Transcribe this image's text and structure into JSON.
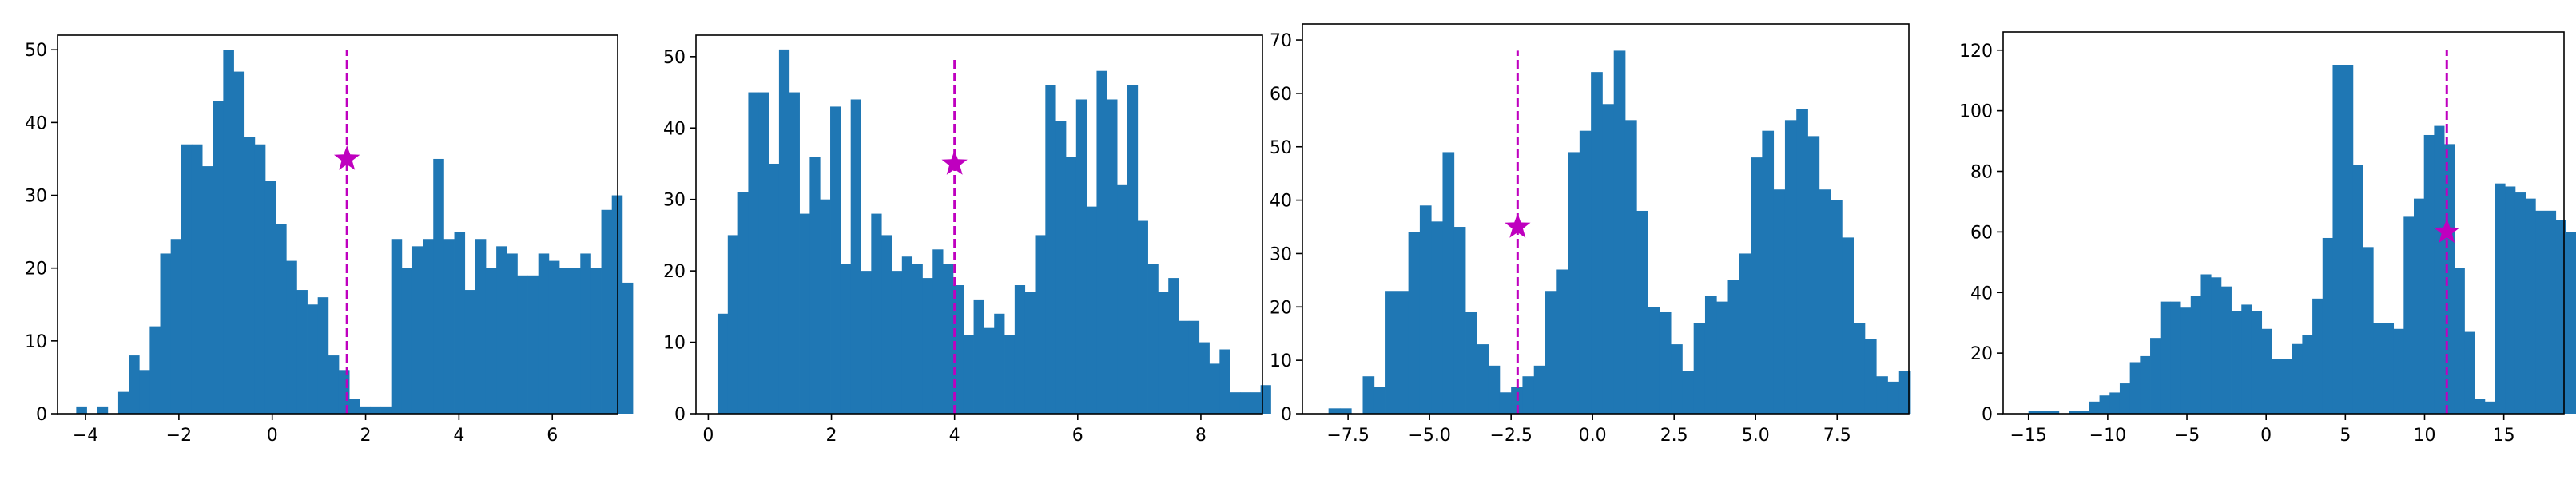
{
  "figure": {
    "marker_color": "#bf00bf",
    "bar_color": "#1f77b4"
  },
  "chart_data": [
    {
      "type": "bar",
      "title": "",
      "xlabel": "",
      "ylabel": "",
      "xlim": [
        -4.6,
        7.4
      ],
      "ylim": [
        0,
        52
      ],
      "xticks": [
        -4,
        -2,
        0,
        2,
        4,
        6
      ],
      "yticks": [
        0,
        10,
        20,
        30,
        40,
        50
      ],
      "bin_start": -4.2,
      "bin_width": 0.225,
      "values": [
        1,
        0,
        1,
        0,
        3,
        8,
        6,
        12,
        22,
        24,
        37,
        37,
        34,
        43,
        50,
        47,
        38,
        37,
        32,
        26,
        21,
        17,
        15,
        16,
        8,
        6,
        2,
        1,
        1,
        1,
        24,
        20,
        23,
        24,
        35,
        24,
        25,
        17,
        24,
        20,
        23,
        22,
        19,
        19,
        22,
        21,
        20,
        20,
        22,
        20,
        28,
        30,
        18
      ],
      "marker": {
        "x": 1.6,
        "y": 35,
        "line_top": 50
      },
      "grid": false,
      "legend": "none"
    },
    {
      "type": "bar",
      "title": "",
      "xlabel": "",
      "ylabel": "",
      "xlim": [
        -0.2,
        9.0
      ],
      "ylim": [
        0,
        53
      ],
      "xticks": [
        0,
        2,
        4,
        6,
        8
      ],
      "yticks": [
        0,
        10,
        20,
        30,
        40,
        50
      ],
      "bin_start": 0.15,
      "bin_width": 0.1664,
      "values": [
        14,
        25,
        31,
        45,
        45,
        35,
        51,
        45,
        28,
        36,
        30,
        43,
        21,
        44,
        20,
        28,
        25,
        20,
        22,
        21,
        19,
        23,
        21,
        18,
        11,
        16,
        12,
        14,
        11,
        18,
        17,
        25,
        46,
        41,
        36,
        44,
        29,
        48,
        44,
        32,
        46,
        27,
        21,
        17,
        19,
        13,
        13,
        10,
        7,
        9,
        3,
        3,
        3,
        4
      ],
      "marker": {
        "x": 4.0,
        "y": 35,
        "line_top": 50
      },
      "grid": false,
      "legend": "none"
    },
    {
      "type": "bar",
      "title": "",
      "xlabel": "",
      "ylabel": "",
      "xlim": [
        -8.9,
        9.7
      ],
      "ylim": [
        0,
        73
      ],
      "xticks": [
        -7.5,
        -5.0,
        -2.5,
        0.0,
        2.5,
        5.0,
        7.5
      ],
      "xtick_labels": [
        "−7.5",
        "−5.0",
        "−2.5",
        "0.0",
        "2.5",
        "5.0",
        "7.5"
      ],
      "yticks": [
        0,
        10,
        20,
        30,
        40,
        50,
        60,
        70
      ],
      "bin_start": -8.1,
      "bin_width": 0.35,
      "values": [
        1,
        1,
        0,
        7,
        5,
        23,
        23,
        34,
        39,
        36,
        49,
        35,
        19,
        13,
        9,
        4,
        5,
        7,
        9,
        23,
        27,
        49,
        53,
        64,
        58,
        68,
        55,
        38,
        20,
        19,
        13,
        8,
        17,
        22,
        21,
        25,
        30,
        48,
        53,
        42,
        55,
        57,
        52,
        42,
        40,
        33,
        17,
        14,
        7,
        6,
        8
      ],
      "marker": {
        "x": -2.3,
        "y": 35,
        "line_top": 68
      },
      "grid": false,
      "legend": "none"
    },
    {
      "type": "bar",
      "title": "",
      "xlabel": "",
      "ylabel": "",
      "xlim": [
        -16.6,
        18.8
      ],
      "ylim": [
        0,
        126
      ],
      "xticks": [
        -15,
        -10,
        -5,
        0,
        5,
        10,
        15
      ],
      "xtick_labels": [
        "−15",
        "−10",
        "−5",
        "0",
        "5",
        "10",
        "15"
      ],
      "yticks": [
        0,
        20,
        40,
        60,
        80,
        100,
        120
      ],
      "bin_start": -15.0,
      "bin_width": 0.64,
      "values": [
        1,
        1,
        1,
        0,
        1,
        1,
        4,
        6,
        7,
        10,
        17,
        19,
        25,
        37,
        37,
        35,
        39,
        46,
        45,
        42,
        34,
        36,
        34,
        28,
        18,
        18,
        23,
        26,
        38,
        58,
        115,
        115,
        82,
        55,
        30,
        30,
        28,
        65,
        71,
        92,
        95,
        89,
        48,
        27,
        5,
        4,
        76,
        75,
        73,
        71,
        67,
        67,
        64,
        60
      ],
      "marker": {
        "x": 11.4,
        "y": 60,
        "line_top": 120
      },
      "grid": false,
      "legend": "none"
    }
  ]
}
